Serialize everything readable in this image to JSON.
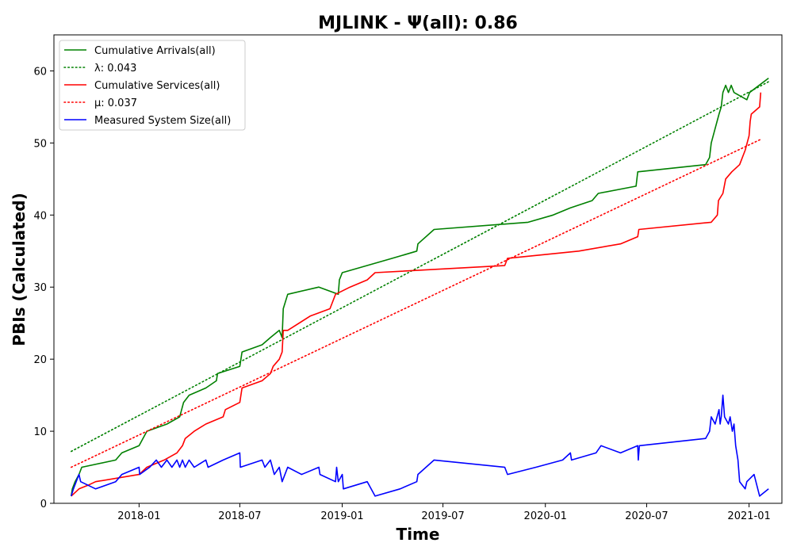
{
  "chart_data": {
    "type": "line",
    "title": "MJLINK -  Ψ(all): 0.86",
    "xlabel": "Time",
    "ylabel": "PBIs (Calculated)",
    "xlim": [
      "2017-08-01",
      "2021-03-01"
    ],
    "ylim": [
      0,
      65
    ],
    "x_ticks": [
      "2018-01",
      "2018-07",
      "2019-01",
      "2019-07",
      "2020-01",
      "2020-07",
      "2021-01"
    ],
    "y_ticks": [
      0,
      10,
      20,
      30,
      40,
      50,
      60
    ],
    "grid": false,
    "legend_position": "top-left",
    "series": [
      {
        "name": "Cumulative Arrivals(all)",
        "color": "#008000",
        "style": "solid",
        "points": [
          [
            "2017-09-01",
            1
          ],
          [
            "2017-09-03",
            2
          ],
          [
            "2017-09-08",
            3
          ],
          [
            "2017-09-15",
            4
          ],
          [
            "2017-09-20",
            5
          ],
          [
            "2017-11-20",
            6
          ],
          [
            "2017-12-01",
            7
          ],
          [
            "2018-01-01",
            8
          ],
          [
            "2018-01-15",
            10
          ],
          [
            "2018-02-20",
            11
          ],
          [
            "2018-03-15",
            12
          ],
          [
            "2018-03-22",
            14
          ],
          [
            "2018-04-01",
            15
          ],
          [
            "2018-05-01",
            16
          ],
          [
            "2018-05-20",
            17
          ],
          [
            "2018-05-22",
            18
          ],
          [
            "2018-07-01",
            19
          ],
          [
            "2018-07-05",
            21
          ],
          [
            "2018-08-10",
            22
          ],
          [
            "2018-08-25",
            23
          ],
          [
            "2018-09-10",
            24
          ],
          [
            "2018-09-15",
            23
          ],
          [
            "2018-09-17",
            27
          ],
          [
            "2018-09-25",
            29
          ],
          [
            "2018-11-20",
            30
          ],
          [
            "2018-12-25",
            29
          ],
          [
            "2018-12-27",
            31
          ],
          [
            "2019-01-01",
            32
          ],
          [
            "2019-04-01",
            34
          ],
          [
            "2019-05-15",
            35
          ],
          [
            "2019-05-17",
            36
          ],
          [
            "2019-06-15",
            38
          ],
          [
            "2019-12-01",
            39
          ],
          [
            "2020-01-15",
            40
          ],
          [
            "2020-02-15",
            41
          ],
          [
            "2020-03-25",
            42
          ],
          [
            "2020-04-05",
            43
          ],
          [
            "2020-06-12",
            44
          ],
          [
            "2020-06-15",
            46
          ],
          [
            "2020-10-15",
            47
          ],
          [
            "2020-10-22",
            48
          ],
          [
            "2020-10-25",
            50
          ],
          [
            "2020-11-01",
            52
          ],
          [
            "2020-11-08",
            54
          ],
          [
            "2020-11-12",
            55
          ],
          [
            "2020-11-15",
            57
          ],
          [
            "2020-11-20",
            58
          ],
          [
            "2020-11-25",
            57
          ],
          [
            "2020-11-30",
            58
          ],
          [
            "2020-12-05",
            57
          ],
          [
            "2020-12-28",
            56
          ],
          [
            "2021-01-02",
            57
          ],
          [
            "2021-02-05",
            59
          ]
        ]
      },
      {
        "name": "λ: 0.043",
        "color": "#008000",
        "style": "dotted",
        "points": [
          [
            "2017-09-01",
            7.2
          ],
          [
            "2021-02-05",
            58.5
          ]
        ]
      },
      {
        "name": "Cumulative Services(all)",
        "color": "#ff0000",
        "style": "solid",
        "points": [
          [
            "2017-09-01",
            1
          ],
          [
            "2017-09-15",
            2
          ],
          [
            "2017-10-01",
            2.5
          ],
          [
            "2017-10-15",
            3
          ],
          [
            "2018-01-01",
            4
          ],
          [
            "2018-01-15",
            5
          ],
          [
            "2018-02-15",
            6
          ],
          [
            "2018-03-10",
            7
          ],
          [
            "2018-03-20",
            8
          ],
          [
            "2018-03-25",
            9
          ],
          [
            "2018-04-10",
            10
          ],
          [
            "2018-05-01",
            11
          ],
          [
            "2018-06-01",
            12
          ],
          [
            "2018-06-05",
            13
          ],
          [
            "2018-07-01",
            14
          ],
          [
            "2018-07-05",
            16
          ],
          [
            "2018-08-10",
            17
          ],
          [
            "2018-08-25",
            18
          ],
          [
            "2018-08-30",
            19
          ],
          [
            "2018-09-10",
            20
          ],
          [
            "2018-09-15",
            21
          ],
          [
            "2018-09-17",
            24
          ],
          [
            "2018-09-25",
            24
          ],
          [
            "2018-11-05",
            26
          ],
          [
            "2018-12-10",
            27
          ],
          [
            "2018-12-20",
            29
          ],
          [
            "2019-01-15",
            30
          ],
          [
            "2019-02-15",
            31
          ],
          [
            "2019-03-01",
            32
          ],
          [
            "2019-10-20",
            33
          ],
          [
            "2019-10-25",
            34
          ],
          [
            "2020-03-01",
            35
          ],
          [
            "2020-05-15",
            36
          ],
          [
            "2020-06-15",
            37
          ],
          [
            "2020-06-17",
            38
          ],
          [
            "2020-10-25",
            39
          ],
          [
            "2020-11-05",
            40
          ],
          [
            "2020-11-07",
            42
          ],
          [
            "2020-11-15",
            43
          ],
          [
            "2020-11-20",
            45
          ],
          [
            "2020-12-01",
            46
          ],
          [
            "2020-12-15",
            47
          ],
          [
            "2020-12-25",
            49
          ],
          [
            "2021-01-01",
            51
          ],
          [
            "2021-01-03",
            53
          ],
          [
            "2021-01-05",
            54
          ],
          [
            "2021-01-20",
            55
          ],
          [
            "2021-01-22",
            57
          ]
        ]
      },
      {
        "name": "μ: 0.037",
        "color": "#ff0000",
        "style": "dotted",
        "points": [
          [
            "2017-09-01",
            5
          ],
          [
            "2021-01-22",
            50.5
          ]
        ]
      },
      {
        "name": "Measured System Size(all)",
        "color": "#0000ff",
        "style": "solid",
        "points": [
          [
            "2017-09-01",
            1
          ],
          [
            "2017-09-05",
            2
          ],
          [
            "2017-09-10",
            3
          ],
          [
            "2017-09-15",
            4
          ],
          [
            "2017-09-18",
            3
          ],
          [
            "2017-10-15",
            2
          ],
          [
            "2017-11-20",
            3
          ],
          [
            "2017-12-01",
            4
          ],
          [
            "2018-01-01",
            5
          ],
          [
            "2018-01-02",
            4
          ],
          [
            "2018-01-20",
            5
          ],
          [
            "2018-02-01",
            6
          ],
          [
            "2018-02-10",
            5
          ],
          [
            "2018-02-20",
            6
          ],
          [
            "2018-03-01",
            5
          ],
          [
            "2018-03-10",
            6
          ],
          [
            "2018-03-15",
            5
          ],
          [
            "2018-03-20",
            6
          ],
          [
            "2018-03-25",
            5
          ],
          [
            "2018-04-01",
            6
          ],
          [
            "2018-04-10",
            5
          ],
          [
            "2018-05-01",
            6
          ],
          [
            "2018-05-05",
            5
          ],
          [
            "2018-06-01",
            6
          ],
          [
            "2018-07-01",
            7
          ],
          [
            "2018-07-02",
            5
          ],
          [
            "2018-08-10",
            6
          ],
          [
            "2018-08-15",
            5
          ],
          [
            "2018-08-25",
            6
          ],
          [
            "2018-09-01",
            4
          ],
          [
            "2018-09-10",
            5
          ],
          [
            "2018-09-15",
            3
          ],
          [
            "2018-09-25",
            5
          ],
          [
            "2018-10-20",
            4
          ],
          [
            "2018-11-20",
            5
          ],
          [
            "2018-11-22",
            4
          ],
          [
            "2018-12-20",
            3
          ],
          [
            "2018-12-22",
            5
          ],
          [
            "2018-12-25",
            3
          ],
          [
            "2019-01-01",
            4
          ],
          [
            "2019-01-03",
            2
          ],
          [
            "2019-02-15",
            3
          ],
          [
            "2019-03-01",
            1
          ],
          [
            "2019-04-15",
            2
          ],
          [
            "2019-05-15",
            3
          ],
          [
            "2019-05-17",
            4
          ],
          [
            "2019-06-15",
            6
          ],
          [
            "2019-10-20",
            5
          ],
          [
            "2019-10-25",
            4
          ],
          [
            "2019-12-15",
            5
          ],
          [
            "2020-02-01",
            6
          ],
          [
            "2020-02-15",
            7
          ],
          [
            "2020-02-17",
            6
          ],
          [
            "2020-04-01",
            7
          ],
          [
            "2020-04-10",
            8
          ],
          [
            "2020-05-15",
            7
          ],
          [
            "2020-06-15",
            8
          ],
          [
            "2020-06-16",
            6
          ],
          [
            "2020-06-18",
            8
          ],
          [
            "2020-10-15",
            9
          ],
          [
            "2020-10-22",
            10
          ],
          [
            "2020-10-25",
            12
          ],
          [
            "2020-11-01",
            11
          ],
          [
            "2020-11-08",
            13
          ],
          [
            "2020-11-10",
            11
          ],
          [
            "2020-11-12",
            12
          ],
          [
            "2020-11-15",
            15
          ],
          [
            "2020-11-18",
            12
          ],
          [
            "2020-11-25",
            11
          ],
          [
            "2020-11-28",
            12
          ],
          [
            "2020-12-02",
            10
          ],
          [
            "2020-12-05",
            11
          ],
          [
            "2020-12-08",
            8
          ],
          [
            "2020-12-12",
            6
          ],
          [
            "2020-12-15",
            3
          ],
          [
            "2020-12-25",
            2
          ],
          [
            "2020-12-28",
            3
          ],
          [
            "2021-01-10",
            4
          ],
          [
            "2021-01-20",
            1
          ],
          [
            "2021-02-05",
            2
          ]
        ]
      }
    ]
  }
}
